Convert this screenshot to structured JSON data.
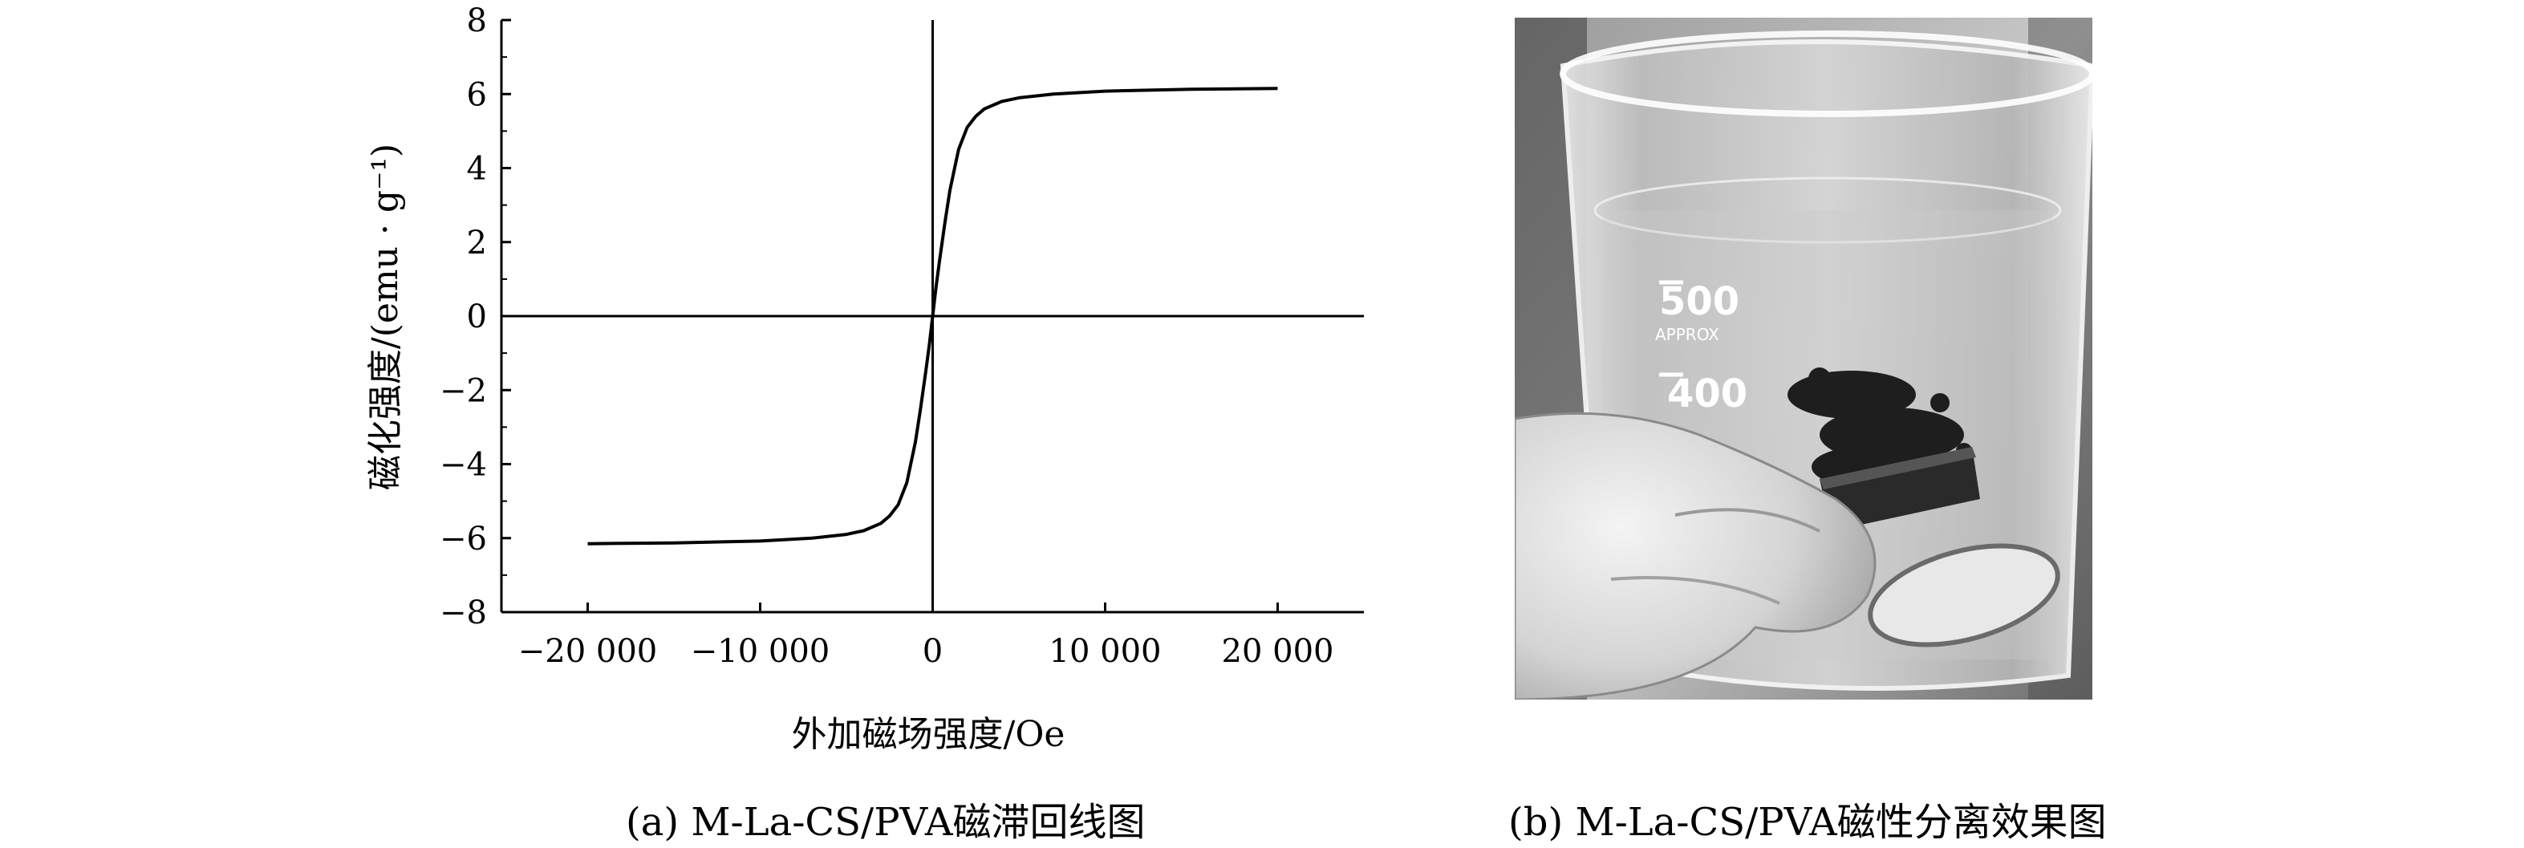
{
  "panel_a": {
    "caption": "(a) M-La-CS/PVA磁滞回线图"
  },
  "panel_b": {
    "caption": "(b) M-La-CS/PVA磁性分离效果图",
    "photo_markings": [
      "500",
      "APPROX",
      "400"
    ]
  },
  "chart_data": {
    "type": "line",
    "xlabel": "外加磁场强度/Oe",
    "ylabel": "磁化强度/(emu · g⁻¹)",
    "xlim": [
      -25000,
      25000
    ],
    "ylim": [
      -8,
      8
    ],
    "xticks": [
      -20000,
      -10000,
      0,
      10000,
      20000
    ],
    "xtick_labels": [
      "−20 000",
      "−10 000",
      "0",
      "10 000",
      "20 000"
    ],
    "yticks": [
      -8,
      -6,
      -4,
      -2,
      0,
      2,
      4,
      6,
      8
    ],
    "ytick_labels": [
      "−8",
      "−6",
      "−4",
      "−2",
      "0",
      "2",
      "4",
      "6",
      "8"
    ],
    "grid": false,
    "reference_lines": {
      "x": 0,
      "y": 0
    },
    "series": [
      {
        "x": [
          -20000,
          -15000,
          -10000,
          -7000,
          -5000,
          -4000,
          -3000,
          -2500,
          -2000,
          -1500,
          -1000,
          -700,
          -400,
          -200,
          0,
          200,
          400,
          700,
          1000,
          1500,
          2000,
          2500,
          3000,
          4000,
          5000,
          7000,
          10000,
          15000,
          20000
        ],
        "y": [
          -6.15,
          -6.13,
          -6.08,
          -6.0,
          -5.9,
          -5.8,
          -5.6,
          -5.4,
          -5.1,
          -4.5,
          -3.4,
          -2.5,
          -1.5,
          -0.8,
          0.0,
          0.8,
          1.5,
          2.5,
          3.4,
          4.5,
          5.1,
          5.4,
          5.6,
          5.8,
          5.9,
          6.0,
          6.08,
          6.13,
          6.15
        ]
      }
    ],
    "line_color": "#000000"
  }
}
